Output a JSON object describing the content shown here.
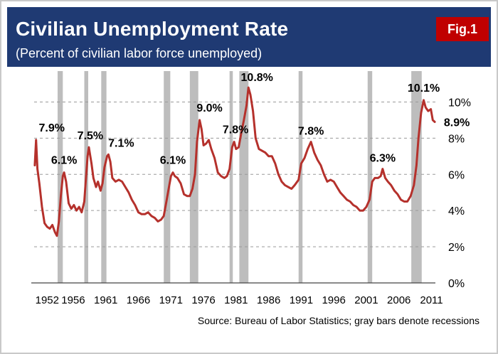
{
  "header": {
    "title": "Civilian Unemployment Rate",
    "subtitle": "(Percent of civilian labor force unemployed)",
    "badge": "Fig.1"
  },
  "source": "Source: Bureau of Labor Statistics; gray bars denote recessions",
  "colors": {
    "header_bg": "#1f3a73",
    "badge_bg": "#c00000",
    "line": "#b5312c",
    "recession": "#bdbdbd",
    "grid": "#9a9a9a"
  },
  "chart_data": {
    "type": "line",
    "title": "Civilian Unemployment Rate",
    "subtitle": "(Percent of civilian labor force unemployed)",
    "xlim": [
      1950,
      2011.6
    ],
    "ylim": [
      0,
      11
    ],
    "x_ticks": [
      "1952",
      "1956",
      "1961",
      "1966",
      "1971",
      "1976",
      "1981",
      "1986",
      "1991",
      "1996",
      "2001",
      "2006",
      "2011"
    ],
    "y_ticks": [
      {
        "value": 0,
        "label": "0%"
      },
      {
        "value": 2,
        "label": "2%"
      },
      {
        "value": 4,
        "label": "4%"
      },
      {
        "value": 6,
        "label": "6%"
      },
      {
        "value": 8,
        "label": "8%"
      },
      {
        "value": 10,
        "label": "10%"
      }
    ],
    "y_axis_side": "right",
    "grid": "horizontal dashed",
    "recessions": [
      [
        1953.6,
        1954.4
      ],
      [
        1957.7,
        1958.3
      ],
      [
        1960.3,
        1961.1
      ],
      [
        1969.9,
        1970.9
      ],
      [
        1973.9,
        1975.2
      ],
      [
        1980.0,
        1980.5
      ],
      [
        1981.5,
        1982.9
      ],
      [
        1990.6,
        1991.2
      ],
      [
        2001.2,
        2001.9
      ],
      [
        2007.9,
        2009.5
      ]
    ],
    "series": [
      {
        "values": [
          [
            1950.1,
            6.5
          ],
          [
            1950.3,
            7.9
          ],
          [
            1950.5,
            6.3
          ],
          [
            1950.8,
            5.5
          ],
          [
            1951.2,
            4.2
          ],
          [
            1951.6,
            3.3
          ],
          [
            1952.0,
            3.1
          ],
          [
            1952.4,
            3.0
          ],
          [
            1952.8,
            3.2
          ],
          [
            1953.2,
            2.8
          ],
          [
            1953.5,
            2.6
          ],
          [
            1953.8,
            3.4
          ],
          [
            1954.1,
            4.8
          ],
          [
            1954.4,
            5.9
          ],
          [
            1954.6,
            6.1
          ],
          [
            1954.9,
            5.6
          ],
          [
            1955.3,
            4.4
          ],
          [
            1955.7,
            4.1
          ],
          [
            1956.1,
            4.3
          ],
          [
            1956.5,
            4.0
          ],
          [
            1956.9,
            4.2
          ],
          [
            1957.3,
            3.9
          ],
          [
            1957.7,
            4.5
          ],
          [
            1957.9,
            5.5
          ],
          [
            1958.2,
            7.0
          ],
          [
            1958.4,
            7.5
          ],
          [
            1958.8,
            6.6
          ],
          [
            1959.1,
            5.8
          ],
          [
            1959.5,
            5.3
          ],
          [
            1959.8,
            5.6
          ],
          [
            1960.2,
            5.1
          ],
          [
            1960.5,
            5.5
          ],
          [
            1960.8,
            6.4
          ],
          [
            1961.2,
            7.0
          ],
          [
            1961.4,
            7.1
          ],
          [
            1961.7,
            6.7
          ],
          [
            1962.0,
            5.8
          ],
          [
            1962.5,
            5.6
          ],
          [
            1963.0,
            5.7
          ],
          [
            1963.5,
            5.6
          ],
          [
            1964.0,
            5.3
          ],
          [
            1964.5,
            5.0
          ],
          [
            1965.0,
            4.6
          ],
          [
            1965.5,
            4.3
          ],
          [
            1966.0,
            3.9
          ],
          [
            1966.5,
            3.8
          ],
          [
            1967.0,
            3.8
          ],
          [
            1967.5,
            3.9
          ],
          [
            1968.0,
            3.7
          ],
          [
            1968.5,
            3.6
          ],
          [
            1969.0,
            3.4
          ],
          [
            1969.5,
            3.5
          ],
          [
            1969.9,
            3.7
          ],
          [
            1970.3,
            4.5
          ],
          [
            1970.7,
            5.3
          ],
          [
            1971.0,
            5.9
          ],
          [
            1971.3,
            6.1
          ],
          [
            1971.6,
            5.9
          ],
          [
            1972.0,
            5.8
          ],
          [
            1972.5,
            5.5
          ],
          [
            1973.0,
            4.9
          ],
          [
            1973.5,
            4.8
          ],
          [
            1973.9,
            4.8
          ],
          [
            1974.3,
            5.2
          ],
          [
            1974.7,
            6.0
          ],
          [
            1975.0,
            7.8
          ],
          [
            1975.4,
            9.0
          ],
          [
            1975.7,
            8.5
          ],
          [
            1976.0,
            7.6
          ],
          [
            1976.4,
            7.7
          ],
          [
            1976.8,
            7.9
          ],
          [
            1977.2,
            7.4
          ],
          [
            1977.7,
            6.9
          ],
          [
            1978.2,
            6.1
          ],
          [
            1978.7,
            5.9
          ],
          [
            1979.2,
            5.8
          ],
          [
            1979.6,
            5.9
          ],
          [
            1980.0,
            6.3
          ],
          [
            1980.4,
            7.5
          ],
          [
            1980.7,
            7.8
          ],
          [
            1981.0,
            7.4
          ],
          [
            1981.4,
            7.5
          ],
          [
            1981.8,
            8.3
          ],
          [
            1982.2,
            9.0
          ],
          [
            1982.6,
            9.8
          ],
          [
            1982.9,
            10.8
          ],
          [
            1983.2,
            10.4
          ],
          [
            1983.6,
            9.5
          ],
          [
            1984.0,
            8.0
          ],
          [
            1984.5,
            7.4
          ],
          [
            1985.0,
            7.3
          ],
          [
            1985.5,
            7.2
          ],
          [
            1986.0,
            7.0
          ],
          [
            1986.5,
            7.0
          ],
          [
            1987.0,
            6.6
          ],
          [
            1987.5,
            6.0
          ],
          [
            1988.0,
            5.6
          ],
          [
            1988.5,
            5.4
          ],
          [
            1989.0,
            5.3
          ],
          [
            1989.5,
            5.2
          ],
          [
            1990.0,
            5.4
          ],
          [
            1990.6,
            5.7
          ],
          [
            1991.0,
            6.6
          ],
          [
            1991.5,
            6.9
          ],
          [
            1992.0,
            7.4
          ],
          [
            1992.5,
            7.8
          ],
          [
            1993.0,
            7.2
          ],
          [
            1993.5,
            6.8
          ],
          [
            1994.0,
            6.5
          ],
          [
            1994.5,
            6.0
          ],
          [
            1995.0,
            5.6
          ],
          [
            1995.5,
            5.7
          ],
          [
            1996.0,
            5.6
          ],
          [
            1996.5,
            5.3
          ],
          [
            1997.0,
            5.0
          ],
          [
            1997.5,
            4.8
          ],
          [
            1998.0,
            4.6
          ],
          [
            1998.5,
            4.5
          ],
          [
            1999.0,
            4.3
          ],
          [
            1999.5,
            4.2
          ],
          [
            2000.0,
            4.0
          ],
          [
            2000.5,
            4.0
          ],
          [
            2001.0,
            4.2
          ],
          [
            2001.5,
            4.6
          ],
          [
            2001.9,
            5.6
          ],
          [
            2002.3,
            5.8
          ],
          [
            2002.8,
            5.8
          ],
          [
            2003.2,
            5.9
          ],
          [
            2003.5,
            6.3
          ],
          [
            2003.9,
            5.8
          ],
          [
            2004.3,
            5.6
          ],
          [
            2004.8,
            5.4
          ],
          [
            2005.3,
            5.1
          ],
          [
            2005.8,
            4.9
          ],
          [
            2006.3,
            4.6
          ],
          [
            2006.8,
            4.5
          ],
          [
            2007.3,
            4.5
          ],
          [
            2007.8,
            4.8
          ],
          [
            2008.3,
            5.4
          ],
          [
            2008.7,
            6.5
          ],
          [
            2009.0,
            8.0
          ],
          [
            2009.4,
            9.4
          ],
          [
            2009.8,
            10.1
          ],
          [
            2010.1,
            9.7
          ],
          [
            2010.5,
            9.5
          ],
          [
            2010.9,
            9.6
          ],
          [
            2011.2,
            9.0
          ],
          [
            2011.5,
            8.9
          ]
        ]
      }
    ],
    "annotations": [
      {
        "text": "7.9%",
        "x": 1950.3,
        "y": 7.9
      },
      {
        "text": "6.1%",
        "x": 1954.6,
        "y": 6.1
      },
      {
        "text": "7.5%",
        "x": 1958.4,
        "y": 7.5
      },
      {
        "text": "7.1%",
        "x": 1961.4,
        "y": 7.1
      },
      {
        "text": "6.1%",
        "x": 1971.3,
        "y": 6.1
      },
      {
        "text": "9.0%",
        "x": 1975.4,
        "y": 9.0
      },
      {
        "text": "7.8%",
        "x": 1980.7,
        "y": 7.8
      },
      {
        "text": "10.8%",
        "x": 1982.9,
        "y": 10.8
      },
      {
        "text": "7.8%",
        "x": 1992.5,
        "y": 7.8
      },
      {
        "text": "6.3%",
        "x": 2003.5,
        "y": 6.3
      },
      {
        "text": "10.1%",
        "x": 2009.8,
        "y": 10.1
      },
      {
        "text": "8.9%",
        "x": 2011.5,
        "y": 8.9
      }
    ]
  }
}
